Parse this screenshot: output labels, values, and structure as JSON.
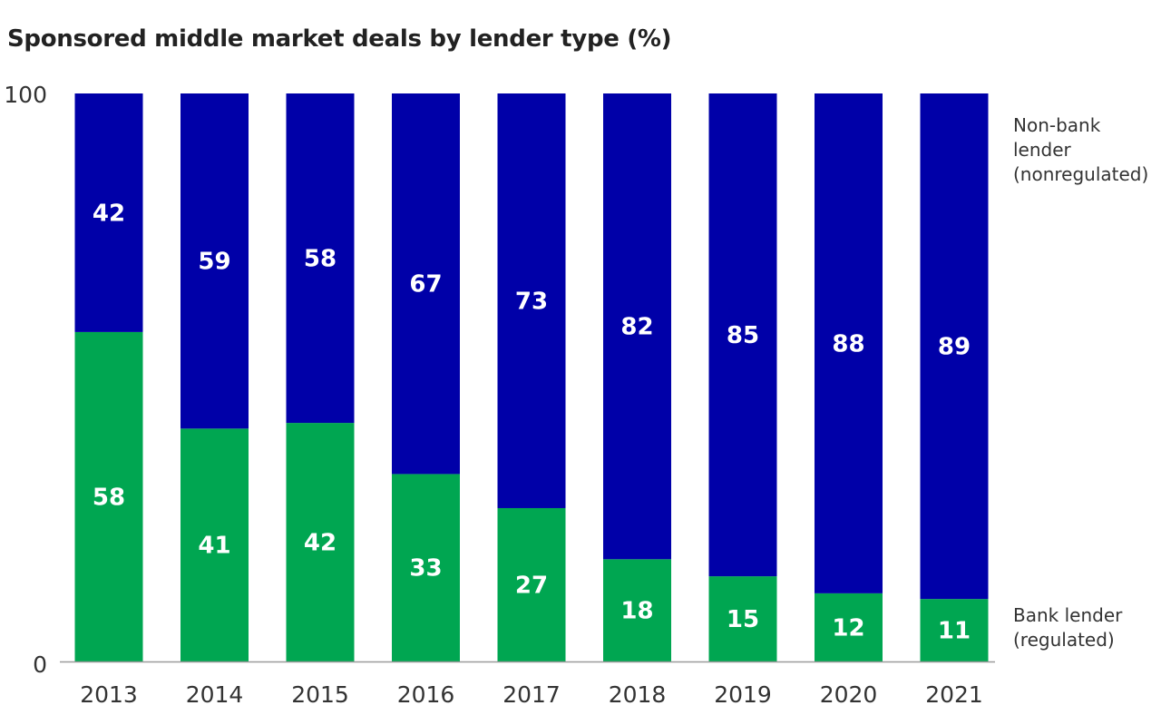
{
  "title": "Sponsored middle market deals by lender type (%)",
  "chart_data": {
    "type": "bar",
    "stacked": true,
    "title": "Sponsored middle market deals by lender type (%)",
    "categories": [
      "2013",
      "2014",
      "2015",
      "2016",
      "2017",
      "2018",
      "2019",
      "2020",
      "2021"
    ],
    "series": [
      {
        "name": "Bank lender (regulated)",
        "legend_lines": [
          "Bank lender",
          "(regulated)"
        ],
        "color": "#00a651",
        "values": [
          58,
          41,
          42,
          33,
          27,
          18,
          15,
          12,
          11
        ]
      },
      {
        "name": "Non-bank lender (nonregulated)",
        "legend_lines": [
          "Non-bank",
          "lender",
          "(nonregulated)"
        ],
        "color": "#0000a8",
        "values": [
          42,
          59,
          58,
          67,
          73,
          82,
          85,
          88,
          89
        ]
      }
    ],
    "ylim": [
      0,
      100
    ],
    "yticks": [
      "0",
      "100"
    ],
    "grid": false,
    "legend_position": "right"
  }
}
